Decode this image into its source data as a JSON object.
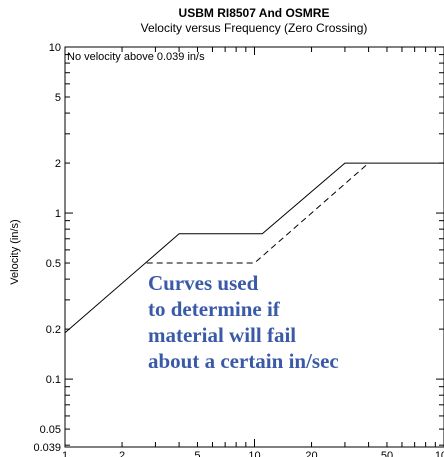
{
  "chart_data": {
    "type": "line",
    "title": "USBM RI8507 And OSMRE",
    "subtitle": "Velocity versus Frequency (Zero Crossing)",
    "ylabel": "Velocity (in/s)",
    "xlabel": "",
    "x_scale": "log",
    "y_scale": "log",
    "xlim": [
      1,
      100
    ],
    "ylim": [
      0.039,
      10
    ],
    "x_tick_labels": [
      {
        "value": 1,
        "label": "1"
      },
      {
        "value": 2,
        "label": "2"
      },
      {
        "value": 5,
        "label": "5"
      },
      {
        "value": 10,
        "label": "10"
      },
      {
        "value": 20,
        "label": "20"
      },
      {
        "value": 50,
        "label": "50"
      },
      {
        "value": 100,
        "label": "100"
      }
    ],
    "y_tick_labels": [
      {
        "value": 10,
        "label": "10"
      },
      {
        "value": 5,
        "label": "5"
      },
      {
        "value": 2,
        "label": "2"
      },
      {
        "value": 1,
        "label": "1"
      },
      {
        "value": 0.5,
        "label": "0.5"
      },
      {
        "value": 0.2,
        "label": "0.2"
      },
      {
        "value": 0.1,
        "label": "0.1"
      },
      {
        "value": 0.05,
        "label": "0.05"
      },
      {
        "value": 0.039,
        "label": "0.039"
      }
    ],
    "series": [
      {
        "style": "solid",
        "color": "#000000",
        "points": [
          [
            1,
            0.19
          ],
          [
            4,
            0.75
          ],
          [
            11,
            0.75
          ],
          [
            30,
            2.0
          ],
          [
            100,
            2.0
          ]
        ]
      },
      {
        "style": "dashed",
        "color": "#000000",
        "points": [
          [
            2.7,
            0.5
          ],
          [
            10,
            0.5
          ],
          [
            40,
            2.0
          ]
        ]
      }
    ],
    "annotation": "No velocity above 0.039 in/s",
    "grid": false
  },
  "overlay_text": [
    "Curves used",
    "to determine if",
    "material will fail",
    "about a certain in/sec"
  ],
  "colors": {
    "overlay_text": "#3a5aa8",
    "axis": "#000000"
  }
}
